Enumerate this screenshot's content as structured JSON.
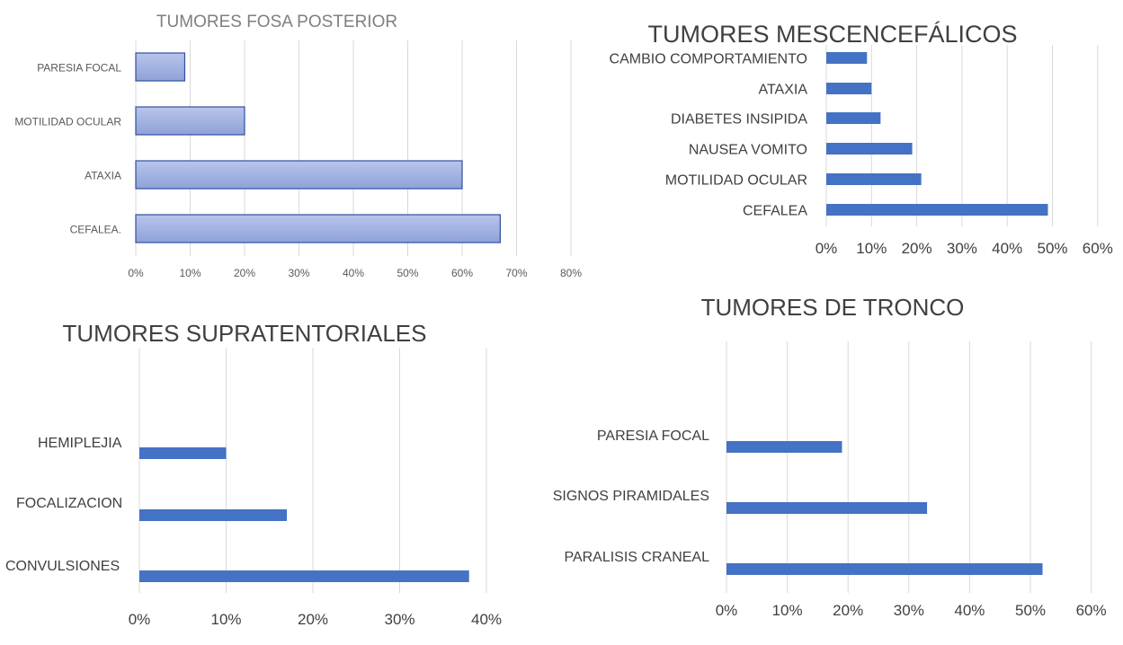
{
  "chart_data": [
    {
      "type": "bar",
      "orientation": "horizontal",
      "title": "TUMORES FOSA POSTERIOR",
      "categories": [
        "PARESIA FOCAL",
        "MOTILIDAD OCULAR",
        "ATAXIA",
        "CEFALEA."
      ],
      "values": [
        9,
        20,
        60,
        67
      ],
      "xlim": [
        0,
        80
      ],
      "ticks": [
        "0%",
        "10%",
        "20%",
        "30%",
        "40%",
        "50%",
        "60%",
        "70%",
        "80%"
      ],
      "grid": true,
      "color": "#9fb0df"
    },
    {
      "type": "bar",
      "orientation": "horizontal",
      "title": "TUMORES MESCENCEFÁLICOS",
      "categories": [
        "CAMBIO COMPORTAMIENTO",
        "ATAXIA",
        "DIABETES INSIPIDA",
        "NAUSEA VOMITO",
        "MOTILIDAD OCULAR",
        "CEFALEA"
      ],
      "values": [
        9,
        10,
        12,
        19,
        21,
        49
      ],
      "xlim": [
        0,
        60
      ],
      "ticks": [
        "0%",
        "10%",
        "20%",
        "30%",
        "40%",
        "50%",
        "60%"
      ],
      "grid": true,
      "color": "#4472c4"
    },
    {
      "type": "bar",
      "orientation": "horizontal",
      "title": "TUMORES SUPRATENTORIALES",
      "categories": [
        "HEMIPLEJIA",
        "FOCALIZACION",
        "CONVULSIONES"
      ],
      "values": [
        10,
        17,
        38
      ],
      "xlim": [
        0,
        40
      ],
      "ticks": [
        "0%",
        "10%",
        "20%",
        "30%",
        "40%"
      ],
      "grid": true,
      "color": "#4472c4"
    },
    {
      "type": "bar",
      "orientation": "horizontal",
      "title": "TUMORES DE TRONCO",
      "categories": [
        "PARESIA FOCAL",
        "SIGNOS PIRAMIDALES",
        "PARALISIS CRANEAL"
      ],
      "values": [
        19,
        33,
        52
      ],
      "xlim": [
        0,
        60
      ],
      "ticks": [
        "0%",
        "10%",
        "20%",
        "30%",
        "40%",
        "50%",
        "60%"
      ],
      "grid": true,
      "color": "#4472c4"
    }
  ]
}
